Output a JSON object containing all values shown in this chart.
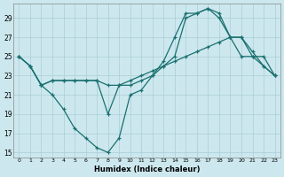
{
  "xlabel": "Humidex (Indice chaleur)",
  "bg_color": "#cce8ee",
  "grid_color": "#aacdd6",
  "line_color": "#1a7070",
  "xlim": [
    -0.5,
    23.5
  ],
  "ylim": [
    14.5,
    30.5
  ],
  "xticks": [
    0,
    1,
    2,
    3,
    4,
    5,
    6,
    7,
    8,
    9,
    10,
    11,
    12,
    13,
    14,
    15,
    16,
    17,
    18,
    19,
    20,
    21,
    22,
    23
  ],
  "yticks": [
    15,
    17,
    19,
    21,
    23,
    25,
    27,
    29
  ],
  "line1_x": [
    0,
    1,
    2,
    3,
    4,
    5,
    6,
    7,
    8,
    9,
    10,
    11,
    12,
    13,
    14,
    15,
    16,
    17,
    18,
    19,
    20,
    21,
    22,
    23
  ],
  "line1_y": [
    25.0,
    24.0,
    22.0,
    21.0,
    19.5,
    17.5,
    16.5,
    15.5,
    15.0,
    16.5,
    21.0,
    21.5,
    23.0,
    24.5,
    27.0,
    29.5,
    29.5,
    30.0,
    29.5,
    27.0,
    27.0,
    25.0,
    24.0,
    23.0
  ],
  "line2_x": [
    0,
    1,
    2,
    3,
    4,
    5,
    6,
    7,
    8,
    9,
    10,
    11,
    12,
    13,
    14,
    15,
    16,
    17,
    18,
    19,
    20,
    21,
    22,
    23
  ],
  "line2_y": [
    25.0,
    24.0,
    22.0,
    22.5,
    22.5,
    22.5,
    22.5,
    22.5,
    22.0,
    22.0,
    22.5,
    23.0,
    23.5,
    24.0,
    24.5,
    25.0,
    25.5,
    26.0,
    26.5,
    27.0,
    27.0,
    25.5,
    24.0,
    23.0
  ],
  "line3_x": [
    0,
    1,
    2,
    3,
    4,
    5,
    6,
    7,
    8,
    9,
    10,
    11,
    12,
    13,
    14,
    15,
    16,
    17,
    18,
    19,
    20,
    21,
    22,
    23
  ],
  "line3_y": [
    25.0,
    24.0,
    22.0,
    22.5,
    22.5,
    22.5,
    22.5,
    22.5,
    19.0,
    22.0,
    22.0,
    22.5,
    23.0,
    24.0,
    25.0,
    29.0,
    29.5,
    30.0,
    29.0,
    27.0,
    25.0,
    25.0,
    25.0,
    23.0
  ]
}
